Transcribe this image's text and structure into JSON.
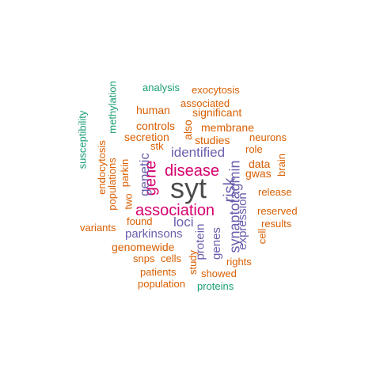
{
  "palette": {
    "dark_gray": "#4d4d4d",
    "magenta": "#d6006f",
    "purple": "#6a5fad",
    "orange": "#d95f02",
    "teal": "#1b9e77"
  },
  "words": [
    {
      "text": "syt",
      "color": "dark_gray"
    },
    {
      "text": "disease",
      "color": "magenta"
    },
    {
      "text": "gene",
      "color": "magenta"
    },
    {
      "text": "association",
      "color": "magenta"
    },
    {
      "text": "risk",
      "color": "purple"
    },
    {
      "text": "synaptotagmin",
      "color": "purple"
    },
    {
      "text": "identified",
      "color": "purple"
    },
    {
      "text": "genetic",
      "color": "purple"
    },
    {
      "text": "parkinsons",
      "color": "purple"
    },
    {
      "text": "loci",
      "color": "purple"
    },
    {
      "text": "protein",
      "color": "purple"
    },
    {
      "text": "genes",
      "color": "purple"
    },
    {
      "text": "expression",
      "color": "purple"
    },
    {
      "text": "analysis",
      "color": "teal"
    },
    {
      "text": "methylation",
      "color": "teal"
    },
    {
      "text": "susceptibility",
      "color": "teal"
    },
    {
      "text": "proteins",
      "color": "teal"
    },
    {
      "text": "exocytosis",
      "color": "orange"
    },
    {
      "text": "associated",
      "color": "orange"
    },
    {
      "text": "human",
      "color": "orange"
    },
    {
      "text": "significant",
      "color": "orange"
    },
    {
      "text": "controls",
      "color": "orange"
    },
    {
      "text": "also",
      "color": "orange"
    },
    {
      "text": "membrane",
      "color": "orange"
    },
    {
      "text": "secretion",
      "color": "orange"
    },
    {
      "text": "studies",
      "color": "orange"
    },
    {
      "text": "neurons",
      "color": "orange"
    },
    {
      "text": "stk",
      "color": "orange"
    },
    {
      "text": "role",
      "color": "orange"
    },
    {
      "text": "endocytosis",
      "color": "orange"
    },
    {
      "text": "populations",
      "color": "orange"
    },
    {
      "text": "parkin",
      "color": "orange"
    },
    {
      "text": "data",
      "color": "orange"
    },
    {
      "text": "brain",
      "color": "orange"
    },
    {
      "text": "gwas",
      "color": "orange"
    },
    {
      "text": "two",
      "color": "orange"
    },
    {
      "text": "release",
      "color": "orange"
    },
    {
      "text": "found",
      "color": "orange"
    },
    {
      "text": "reserved",
      "color": "orange"
    },
    {
      "text": "results",
      "color": "orange"
    },
    {
      "text": "variants",
      "color": "orange"
    },
    {
      "text": "cell",
      "color": "orange"
    },
    {
      "text": "genomewide",
      "color": "orange"
    },
    {
      "text": "snps",
      "color": "orange"
    },
    {
      "text": "cells",
      "color": "orange"
    },
    {
      "text": "study",
      "color": "orange"
    },
    {
      "text": "rights",
      "color": "orange"
    },
    {
      "text": "patients",
      "color": "orange"
    },
    {
      "text": "showed",
      "color": "orange"
    },
    {
      "text": "population",
      "color": "orange"
    }
  ]
}
